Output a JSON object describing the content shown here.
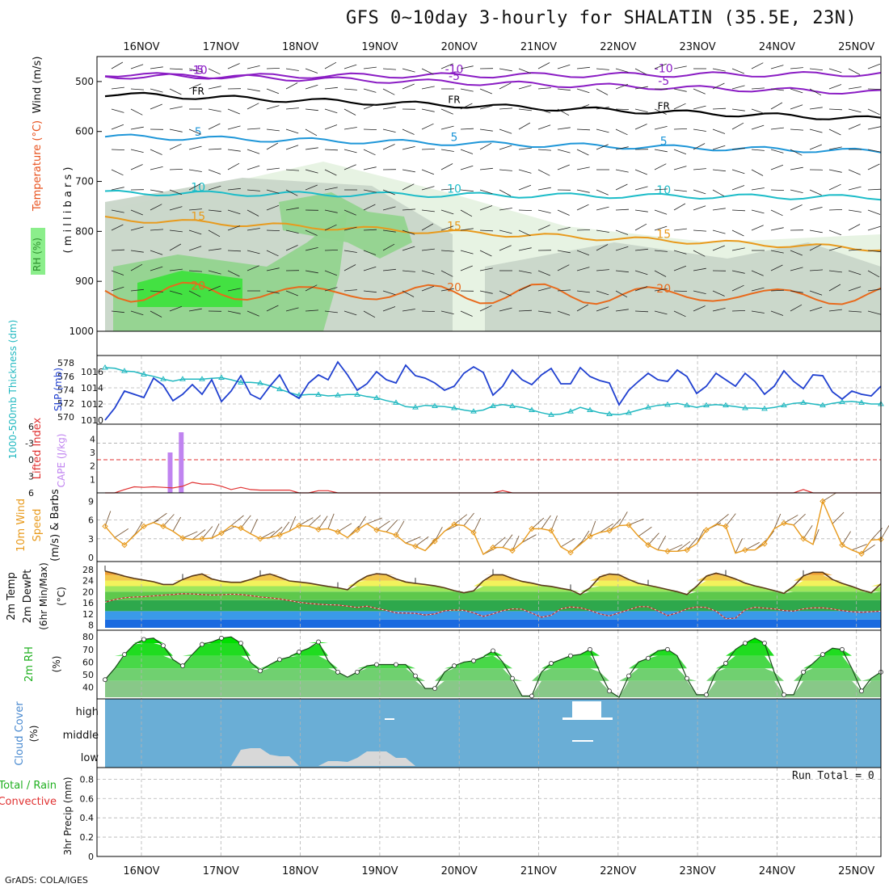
{
  "page": {
    "title": "GFS 0~10day 3-hourly for SHALATIN (35.5E, 23N)",
    "credit": "GrADS: COLA/IGES",
    "run_total": "Run Total = 0"
  },
  "chart_data": [
    {
      "type": "area",
      "id": "upper_air",
      "title": "",
      "dates": [
        "16NOV",
        "17NOV",
        "18NOV",
        "19NOV",
        "20NOV",
        "21NOV",
        "22NOV",
        "23NOV",
        "24NOV",
        "25NOV"
      ],
      "ylabel_parts": [
        "RH (%)",
        "Temperature (°C)",
        "Wind (m/s)"
      ],
      "yunit": "( m i l l i b a r s )",
      "yticks": [
        500,
        600,
        700,
        800,
        900,
        1000
      ],
      "ylim": [
        1000,
        450
      ],
      "temperature_isotherms": [
        {
          "label": "-10",
          "color": "#8a1cc4",
          "p_start": 490,
          "p_end": 485
        },
        {
          "label": "-5",
          "color": "#8a1cc4",
          "p_start": 485,
          "p_end": 522
        },
        {
          "label": "FR",
          "color": "#000000",
          "p_start": 525,
          "p_end": 575
        },
        {
          "label": "5",
          "color": "#1e96d8",
          "p_start": 610,
          "p_end": 640
        },
        {
          "label": "10",
          "color": "#1cbcc8",
          "p_start": 723,
          "p_end": 732
        },
        {
          "label": "15",
          "color": "#e89a1c",
          "p_start": 775,
          "p_end": 835
        },
        {
          "label": "20",
          "color": "#e86a1c",
          "p_start": 920,
          "p_end": 930
        }
      ],
      "rh_levels": [
        30,
        50,
        70,
        90
      ],
      "rh_colors": [
        "#eaf5e6",
        "#c8d8c8",
        "#9ed89a",
        "#4cd44c"
      ]
    },
    {
      "type": "line",
      "id": "slp_thickness",
      "ylabel_left": "1000-500mb Thickness (dm)",
      "ylabel_right": "SLP (mb)",
      "left_ticks": [
        570,
        572,
        574,
        576,
        578
      ],
      "right_ticks": [
        1010,
        1012,
        1014,
        1016
      ],
      "series": [
        {
          "name": "SLP (mb)",
          "color": "#2040d0",
          "axis": "right",
          "values": [
            1010,
            1011.5,
            1013.6,
            1013.2,
            1012.8,
            1015.2,
            1014.3,
            1012.4,
            1013.2,
            1014.4,
            1013.2,
            1015.0,
            1012.3,
            1013.6,
            1015.5,
            1013.2,
            1012.6,
            1014.2,
            1015.6,
            1013.4,
            1012.7,
            1014.6,
            1015.6,
            1015.0,
            1017.2,
            1015.6,
            1013.7,
            1014.5,
            1016.0,
            1015.0,
            1014.6,
            1016.8,
            1015.5,
            1015.2,
            1014.6,
            1013.7,
            1014.2,
            1015.8,
            1016.6,
            1015.9,
            1013.1,
            1014.2,
            1016.2,
            1015.0,
            1014.4,
            1015.6,
            1016.4,
            1014.5,
            1014.5,
            1016.5,
            1015.4,
            1014.9,
            1014.6,
            1011.9,
            1013.7,
            1014.8,
            1015.8,
            1015.0,
            1014.8,
            1016.2,
            1015.4,
            1013.3,
            1014.2,
            1015.8,
            1015.0,
            1014.2,
            1015.8,
            1014.8,
            1013.2,
            1014.2,
            1016.1,
            1014.8,
            1013.9,
            1015.6,
            1015.5,
            1013.5,
            1012.6,
            1013.6,
            1013.2,
            1013.0,
            1014.2
          ]
        },
        {
          "name": "Thickness (dm)",
          "color": "#20b8c0",
          "axis": "left",
          "values": [
            577.3,
            577.2,
            576.8,
            576.7,
            576.3,
            576.0,
            575.6,
            575.3,
            575.6,
            575.6,
            575.6,
            575.7,
            575.8,
            575.5,
            575.1,
            575.1,
            575.0,
            574.6,
            574.1,
            573.6,
            573.2,
            573.3,
            573.3,
            573.1,
            573.2,
            573.3,
            573.3,
            573.0,
            572.8,
            572.4,
            572.1,
            571.5,
            571.4,
            571.7,
            571.6,
            571.5,
            571.3,
            571.0,
            570.8,
            571.0,
            571.6,
            571.8,
            571.6,
            571.4,
            571.0,
            570.6,
            570.3,
            570.4,
            570.8,
            571.4,
            571.0,
            570.6,
            570.4,
            570.3,
            570.6,
            571.0,
            571.4,
            571.7,
            571.8,
            572.0,
            571.7,
            571.4,
            571.7,
            571.8,
            571.7,
            571.5,
            571.3,
            571.3,
            571.2,
            571.4,
            571.7,
            572.0,
            572.1,
            571.9,
            571.7,
            572.0,
            572.2,
            572.3,
            572.1,
            571.9,
            571.9
          ]
        }
      ]
    },
    {
      "type": "bar",
      "id": "li_cape",
      "ylabel_left": "Lifted Index",
      "ylabel_right": "CAPE (J/kg)",
      "li_ticks": [
        -6,
        -3,
        0,
        3,
        6
      ],
      "cape_ticks": [
        1,
        2,
        3,
        4
      ],
      "cape_values": [
        {
          "x": 5.4,
          "value": 3.0
        },
        {
          "x": 6.5,
          "value": 4.5
        }
      ],
      "lifted_index": [
        6,
        6,
        5.4,
        4.9,
        5,
        4.9,
        5,
        5.1,
        4.8,
        4.1,
        4.4,
        4.4,
        4.8,
        5.4,
        5,
        5.4,
        5.5,
        5.5,
        5.5,
        5.5,
        6,
        6,
        5.6,
        5.6,
        6,
        6,
        6,
        6,
        6,
        6,
        6,
        6,
        6,
        6,
        6,
        6,
        6,
        6,
        6,
        6,
        6,
        5.6,
        6,
        6,
        6,
        6,
        6,
        6,
        6,
        6,
        6,
        6,
        6,
        6,
        6,
        6,
        6,
        6,
        6,
        6,
        6,
        6,
        6,
        6,
        6,
        6,
        6,
        6,
        6,
        6,
        6,
        6,
        5.4,
        6,
        6,
        6,
        6,
        6,
        6,
        6,
        6
      ]
    },
    {
      "type": "line",
      "id": "wind10m",
      "ylabel": "10m Wind Speed (m/s) & Barbs",
      "yticks": [
        0,
        3,
        6,
        9
      ],
      "ylim": [
        0,
        9.7
      ],
      "series": [
        {
          "name": "Speed",
          "color": "#e89a1c",
          "values": [
            5,
            3.2,
            2,
            3.5,
            5,
            5.6,
            5,
            4.2,
            3.1,
            2.9,
            3,
            3.1,
            3.9,
            5.1,
            4.7,
            3.8,
            3,
            3.2,
            3.6,
            4.2,
            5.1,
            5,
            4.5,
            4.6,
            4.1,
            3.2,
            4.4,
            5.4,
            4.4,
            4.1,
            3.6,
            2.3,
            1.8,
            1.1,
            2.6,
            4.2,
            5.3,
            5.1,
            4.0,
            0.5,
            1.6,
            1.6,
            1.1,
            2.4,
            4.6,
            4.6,
            4.3,
            1.7,
            0.8,
            2.1,
            3.4,
            4.0,
            4.3,
            5.1,
            5.2,
            3.4,
            2.0,
            1.2,
            1.0,
            1.0,
            1.2,
            2.2,
            4.4,
            5.3,
            5.0,
            0.7,
            1.2,
            1.2,
            2.2,
            4.6,
            5.5,
            5.2,
            3.0,
            2.1,
            9.0,
            5.4,
            2.0,
            1.2,
            0.6,
            2.8,
            2.9
          ]
        }
      ]
    },
    {
      "type": "area",
      "id": "temp2m",
      "ylabel": "2m Temp 2m DewPt (6hr Min/Max) (°C)",
      "yticks": [
        8,
        12,
        16,
        20,
        24,
        28
      ],
      "band_colors": [
        "#1a6ae0",
        "#3a9ae8",
        "#2ea84c",
        "#5ec84c",
        "#9ee65c",
        "#f2f25c",
        "#f2c84c",
        "#f0a030"
      ],
      "temperature": [
        27.4,
        26.6,
        25.6,
        24.8,
        24.2,
        23.6,
        22.6,
        22.6,
        24.4,
        25.7,
        26.4,
        24.6,
        23.8,
        23.4,
        23.4,
        24.4,
        25.7,
        26.4,
        25.2,
        23.9,
        23.5,
        23.1,
        22.5,
        21.9,
        21.4,
        20.7,
        23.6,
        25.6,
        26.5,
        26.2,
        24.6,
        23.5,
        23.0,
        22.6,
        22.1,
        21.4,
        20.4,
        19.6,
        20.3,
        23.9,
        26.1,
        26.1,
        24.8,
        23.7,
        23.1,
        22.3,
        21.9,
        21.2,
        20.6,
        19.0,
        21.4,
        25.3,
        26.4,
        26.1,
        24.4,
        23.0,
        22.3,
        21.6,
        20.8,
        20.0,
        19.0,
        22.0,
        25.6,
        26.7,
        25.8,
        24.6,
        23.1,
        22.1,
        21.3,
        20.4,
        19.4,
        22.0,
        25.7,
        27.0,
        27.0,
        24.4,
        23.0,
        21.9,
        20.6,
        19.6,
        22.9
      ],
      "dewpoint": [
        16.2,
        17.2,
        17.8,
        18.1,
        18.2,
        18.5,
        18.8,
        19.0,
        19.3,
        19.2,
        19.0,
        18.8,
        18.9,
        19.1,
        19.0,
        18.6,
        18.1,
        17.8,
        17.4,
        16.8,
        16.2,
        15.8,
        15.5,
        15.3,
        15.2,
        14.8,
        14.3,
        14.8,
        14.0,
        13.3,
        12.4,
        12.3,
        12.2,
        11.6,
        12.0,
        13.1,
        13.4,
        13.3,
        12.4,
        11.1,
        12.0,
        13.2,
        13.8,
        13.7,
        12.3,
        10.8,
        11.5,
        13.8,
        14.5,
        14.2,
        13.3,
        12.0,
        11.3,
        12.4,
        13.5,
        14.6,
        14.6,
        13.1,
        11.4,
        12.4,
        13.8,
        14.5,
        14.3,
        13.0,
        10.3,
        10.5,
        13.5,
        14.4,
        14.1,
        13.8,
        13.2,
        13.0,
        13.8,
        14.2,
        14.2,
        13.8,
        13.2,
        12.8,
        12.6,
        12.8,
        13.0
      ]
    },
    {
      "type": "area",
      "id": "rh2m",
      "ylabel": "2m RH (%)",
      "yticks": [
        40,
        50,
        60,
        70,
        80
      ],
      "band_colors": [
        "#88c888",
        "#70d070",
        "#48d848",
        "#20dc20",
        "#00e000"
      ],
      "values": [
        46,
        55,
        66,
        74,
        78,
        79,
        73,
        62,
        57,
        66,
        74,
        76,
        79,
        80,
        75,
        60,
        53,
        58,
        62,
        64,
        68,
        71,
        76,
        61,
        52,
        48,
        52,
        57,
        58,
        58,
        58,
        58,
        49,
        39,
        39,
        52,
        57,
        60,
        61,
        64,
        69,
        60,
        47,
        33,
        33,
        52,
        59,
        62,
        65,
        66,
        70,
        52,
        37,
        32,
        49,
        60,
        63,
        69,
        70,
        65,
        47,
        34,
        34,
        52,
        59,
        70,
        75,
        79,
        75,
        52,
        34,
        34,
        52,
        59,
        66,
        71,
        70,
        55,
        37,
        47,
        52
      ]
    },
    {
      "type": "area",
      "id": "cloud",
      "ylabel": "Cloud Cover (%)",
      "level_labels": [
        "high",
        "middle",
        "low"
      ],
      "background": "#6aaed6",
      "low_cloud": [
        0,
        0,
        0,
        0,
        0,
        0,
        0,
        0,
        0,
        0,
        0,
        0,
        0,
        0,
        20,
        22,
        22,
        14,
        12,
        12,
        0,
        0,
        0,
        6,
        6,
        5,
        10,
        18,
        18,
        18,
        10,
        10,
        0,
        0,
        0,
        0,
        0,
        0,
        0,
        0,
        0,
        0,
        0,
        0,
        0,
        0,
        0,
        0,
        0,
        0,
        0,
        0,
        0,
        0,
        0,
        0,
        0,
        0,
        0,
        0,
        0,
        0,
        0,
        0,
        0,
        0,
        0,
        0,
        0,
        0,
        0,
        0,
        0,
        0,
        0,
        0,
        0,
        0,
        0,
        0,
        0
      ],
      "high_cloud_notes": "small patches near 19NOV and 21-22NOV"
    },
    {
      "type": "bar",
      "id": "precip",
      "ylabel_parts": [
        "Total / Rain",
        "Convective"
      ],
      "ylabel_unit": "3hr Precip (mm)",
      "yticks": [
        0,
        0.2,
        0.4,
        0.6,
        0.8
      ],
      "values": [
        0,
        0,
        0,
        0,
        0,
        0,
        0,
        0,
        0,
        0,
        0,
        0,
        0,
        0,
        0,
        0,
        0,
        0,
        0,
        0,
        0,
        0,
        0,
        0,
        0,
        0,
        0,
        0,
        0,
        0,
        0,
        0,
        0,
        0,
        0,
        0,
        0,
        0,
        0,
        0,
        0,
        0,
        0,
        0,
        0,
        0,
        0,
        0,
        0,
        0,
        0,
        0,
        0,
        0,
        0,
        0,
        0,
        0,
        0,
        0,
        0,
        0,
        0,
        0,
        0,
        0,
        0,
        0,
        0,
        0,
        0,
        0,
        0,
        0,
        0,
        0,
        0,
        0,
        0,
        0,
        0
      ]
    }
  ]
}
